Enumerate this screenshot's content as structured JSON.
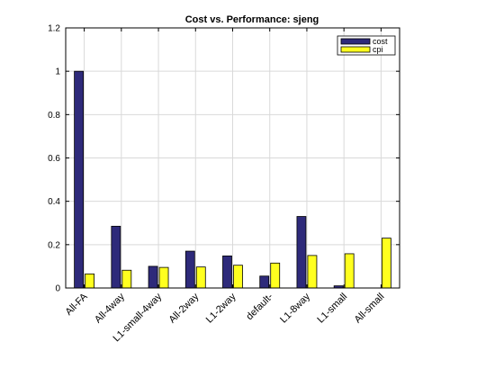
{
  "chart_data": {
    "type": "bar",
    "title": "Cost vs. Performance: sjeng",
    "xlabel": "",
    "ylabel": "",
    "categories": [
      "All-FA",
      "All-4way",
      "L1-small-4way",
      "All-2way",
      "L1-2way",
      "default-",
      "L1-8way",
      "L1-small",
      "All-small"
    ],
    "series": [
      {
        "name": "cost",
        "color": "#2e2a7a",
        "values": [
          1.0,
          0.285,
          0.1,
          0.17,
          0.148,
          0.055,
          0.33,
          0.01,
          0.0
        ]
      },
      {
        "name": "cpi",
        "color": "#ffff1f",
        "values": [
          0.065,
          0.082,
          0.095,
          0.097,
          0.105,
          0.115,
          0.15,
          0.158,
          0.23
        ]
      }
    ],
    "ylim": [
      0,
      1.2
    ],
    "yticks": [
      "0",
      "0.2",
      "0.4",
      "0.6",
      "0.8",
      "1",
      "1.2"
    ],
    "grid": true,
    "legend": "top-right"
  }
}
